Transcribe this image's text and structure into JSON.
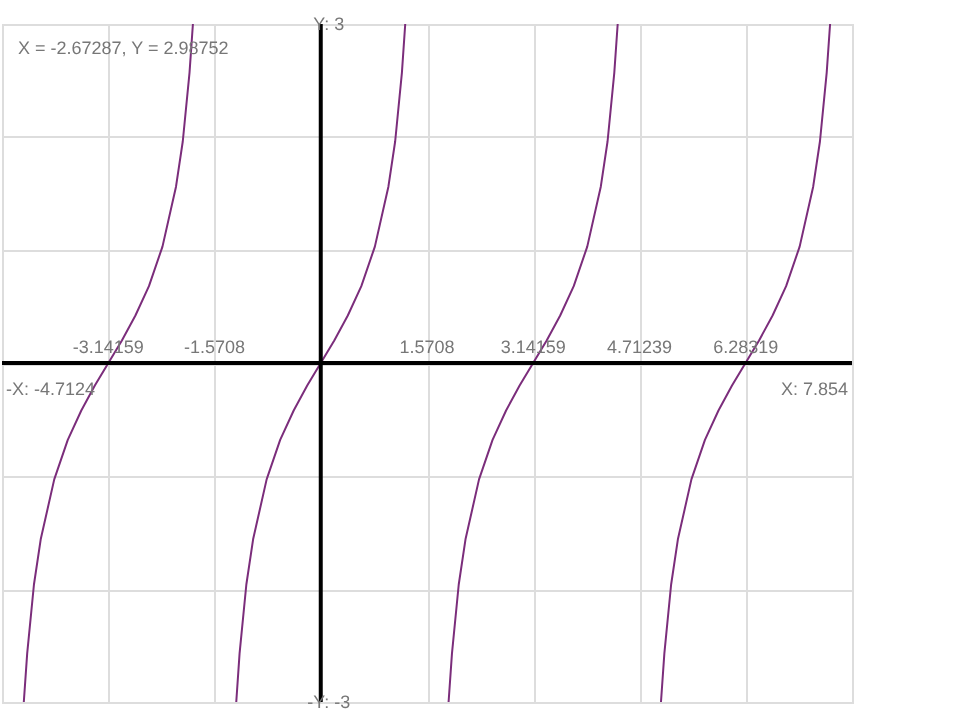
{
  "chart_data": {
    "type": "line",
    "x": [
      -4.39,
      -4.34,
      -4.24,
      -4.14,
      -3.94,
      -3.74,
      -3.54,
      -3.34,
      -3.14,
      -2.94,
      -2.74,
      -2.54,
      -2.34,
      -2.14,
      -2.04,
      -1.94,
      -1.89,
      -1.57,
      -1.249,
      -1.2,
      -1.1,
      -1.0,
      -0.8,
      -0.6,
      -0.4,
      -0.2,
      0,
      0.2,
      0.4,
      0.6,
      0.8,
      1.0,
      1.1,
      1.2,
      1.249,
      1.57,
      1.89,
      1.94,
      2.04,
      2.14,
      2.34,
      2.54,
      2.74,
      2.94,
      3.14,
      3.34,
      3.54,
      3.74,
      3.94,
      4.14,
      4.24,
      4.34,
      4.39,
      4.71,
      5.03,
      5.08,
      5.18,
      5.28,
      5.48,
      5.68,
      5.88,
      6.08,
      6.28,
      6.48,
      6.68,
      6.88,
      7.08,
      7.28,
      7.38,
      7.48,
      7.53
    ],
    "series": [
      {
        "color": "#7b2d7b",
        "values": [
          -3,
          -2.57,
          -1.96,
          -1.56,
          -1.03,
          -0.68,
          -0.42,
          -0.2,
          0,
          0.2,
          0.42,
          0.68,
          1.03,
          1.56,
          1.96,
          2.57,
          3,
          null,
          -3,
          -2.57,
          -1.96,
          -1.56,
          -1.03,
          -0.68,
          -0.42,
          -0.2,
          0,
          0.2,
          0.42,
          0.68,
          1.03,
          1.56,
          1.96,
          2.57,
          3,
          null,
          -3,
          -2.57,
          -1.96,
          -1.56,
          -1.03,
          -0.68,
          -0.42,
          -0.2,
          0,
          0.2,
          0.42,
          0.68,
          1.03,
          1.56,
          1.96,
          2.57,
          3,
          null,
          -3,
          -2.57,
          -1.96,
          -1.56,
          -1.03,
          -0.68,
          -0.42,
          -0.2,
          0,
          0.2,
          0.42,
          0.68,
          1.03,
          1.56,
          1.96,
          2.57,
          3
        ]
      }
    ],
    "xlim": [
      -4.7124,
      7.854
    ],
    "xticks": [
      {
        "value": -4.7124,
        "label": null
      },
      -3.14159,
      -1.5708,
      {
        "value": 0,
        "label": null
      },
      1.5708,
      3.14159,
      4.71239,
      6.28319,
      {
        "value": 7.854,
        "label": null
      }
    ],
    "ylim": [
      -3,
      3
    ],
    "yticks": [
      {
        "value": -3,
        "label": "-Y: -3"
      },
      {
        "value": -2,
        "label": null
      },
      {
        "value": -1,
        "label": null
      },
      {
        "value": 0,
        "label": null
      },
      {
        "value": 1,
        "label": null
      },
      {
        "value": 2,
        "label": null
      },
      {
        "value": 3,
        "label": "Y: 3"
      }
    ],
    "grid": true,
    "legend": false,
    "marker": "none",
    "line_style": "solid",
    "annotations": [
      "X = -2.67287, Y = 2.98752",
      "-X: -4.7124",
      "X: 7.854"
    ]
  }
}
